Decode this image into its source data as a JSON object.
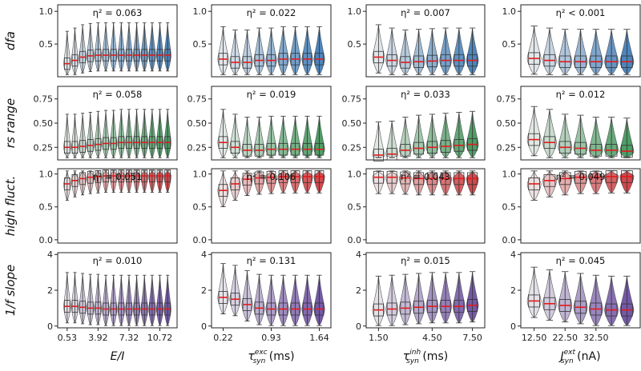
{
  "chart_data": {
    "type": "violin-box-grid",
    "rows": [
      {
        "label": "dfa",
        "ylim": [
          0.0,
          1.1
        ],
        "yticks": [
          "0.5",
          "1.0"
        ],
        "color": "#2c6fb0"
      },
      {
        "label": "rs range",
        "ylim": [
          0.12,
          0.88
        ],
        "yticks": [
          "0.25",
          "0.50",
          "0.75"
        ],
        "color": "#2e8b4a"
      },
      {
        "label": "high fluct.",
        "ylim": [
          -0.05,
          1.08
        ],
        "yticks": [
          "0.0",
          "0.5",
          "1.0"
        ],
        "color": "#c9262a"
      },
      {
        "label": "1/f slope",
        "ylim": [
          -0.1,
          4.1
        ],
        "yticks": [
          "0",
          "2",
          "4"
        ],
        "color": "#5b3a96"
      }
    ],
    "columns": [
      {
        "label_main": "E/I",
        "label_sub": "",
        "label_sup": "",
        "label_unit": "",
        "xticks": [
          "0.53",
          "3.92",
          "7.32",
          "10.72"
        ],
        "n": 14
      },
      {
        "label_main": "τ",
        "label_sub": "syn",
        "label_sup": "exc",
        "label_unit": " (ms)",
        "xticks": [
          "0.22",
          "0.93",
          "1.64"
        ],
        "n": 9
      },
      {
        "label_main": "τ",
        "label_sub": "syn",
        "label_sup": "inh",
        "label_unit": " (ms)",
        "xticks": [
          "1.50",
          "4.50",
          "7.50"
        ],
        "n": 8
      },
      {
        "label_main": "J",
        "label_sub": "syn",
        "label_sup": "ext",
        "label_unit": " (nA)",
        "xticks": [
          "12.50",
          "22.50",
          "32.50"
        ],
        "n": 7
      }
    ],
    "eta": [
      [
        "η² = 0.063",
        "η² = 0.022",
        "η² = 0.007",
        "η² < 0.001"
      ],
      [
        "η² = 0.058",
        "η² = 0.019",
        "η² = 0.033",
        "η² = 0.012"
      ],
      [
        "η² = 0.051",
        "η² = 0.106",
        "η² = 0.043",
        "η² = 0.049"
      ],
      [
        "η² = 0.010",
        "η² = 0.131",
        "η² = 0.015",
        "η² = 0.045"
      ]
    ],
    "medians": [
      [
        [
          0.2,
          0.25,
          0.3,
          0.32,
          0.33,
          0.33,
          0.33,
          0.33,
          0.33,
          0.33,
          0.33,
          0.33,
          0.33,
          0.33
        ],
        [
          0.27,
          0.22,
          0.22,
          0.25,
          0.25,
          0.27,
          0.27,
          0.27,
          0.27
        ],
        [
          0.3,
          0.25,
          0.22,
          0.23,
          0.24,
          0.25,
          0.25,
          0.25
        ],
        [
          0.28,
          0.25,
          0.23,
          0.23,
          0.23,
          0.23,
          0.23
        ]
      ],
      [
        [
          0.25,
          0.25,
          0.26,
          0.27,
          0.28,
          0.29,
          0.29,
          0.3,
          0.3,
          0.3,
          0.3,
          0.3,
          0.3,
          0.3
        ],
        [
          0.3,
          0.25,
          0.22,
          0.22,
          0.23,
          0.23,
          0.23,
          0.23,
          0.23
        ],
        [
          0.17,
          0.18,
          0.22,
          0.24,
          0.25,
          0.26,
          0.27,
          0.28
        ],
        [
          0.33,
          0.3,
          0.25,
          0.24,
          0.22,
          0.22,
          0.21
        ]
      ],
      [
        [
          0.85,
          0.9,
          0.93,
          0.95,
          0.96,
          0.97,
          0.97,
          0.97,
          0.97,
          0.97,
          0.97,
          0.97,
          0.97,
          0.97
        ],
        [
          0.75,
          0.85,
          0.92,
          0.94,
          0.95,
          0.96,
          0.96,
          0.96,
          0.96
        ],
        [
          0.95,
          0.95,
          0.94,
          0.93,
          0.93,
          0.93,
          0.93,
          0.93
        ],
        [
          0.85,
          0.9,
          0.93,
          0.95,
          0.95,
          0.96,
          0.96
        ]
      ],
      [
        [
          1.1,
          1.1,
          1.05,
          1.0,
          1.0,
          0.95,
          0.95,
          0.95,
          0.95,
          0.95,
          0.95,
          0.95,
          0.95,
          0.95
        ],
        [
          1.6,
          1.5,
          1.2,
          1.0,
          0.95,
          0.95,
          0.95,
          0.95,
          0.95
        ],
        [
          0.9,
          0.95,
          1.0,
          1.05,
          1.1,
          1.1,
          1.1,
          1.15
        ],
        [
          1.4,
          1.25,
          1.15,
          1.05,
          0.95,
          0.9,
          0.9
        ]
      ]
    ]
  }
}
